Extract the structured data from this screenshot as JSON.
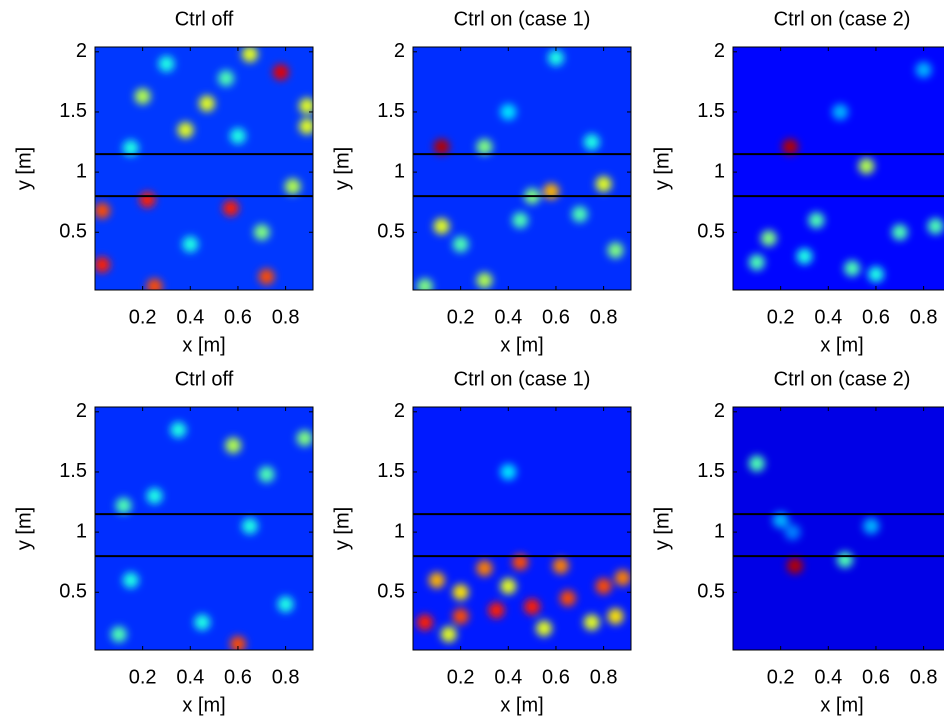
{
  "chart_data": [
    {
      "type": "heatmap",
      "title": "Ctrl off",
      "x_label": "x [m]",
      "y_label": "y [m]",
      "colormap": "jet",
      "xlim": [
        0,
        0.915
      ],
      "ylim": [
        0.02,
        2.04
      ],
      "xticks": [
        0.2,
        0.4,
        0.6,
        0.8
      ],
      "yticks": [
        0.5,
        1,
        1.5,
        2
      ],
      "hlines": [
        1.15,
        0.8
      ],
      "background": 0.18,
      "peaks": [
        {
          "x": 0.2,
          "y": 1.63,
          "intensity": 0.55
        },
        {
          "x": 0.22,
          "y": 0.77,
          "intensity": 0.85
        },
        {
          "x": 0.38,
          "y": 1.35,
          "intensity": 0.6
        },
        {
          "x": 0.47,
          "y": 1.57,
          "intensity": 0.6
        },
        {
          "x": 0.65,
          "y": 1.98,
          "intensity": 0.6
        },
        {
          "x": 0.78,
          "y": 1.83,
          "intensity": 0.9
        },
        {
          "x": 0.89,
          "y": 1.55,
          "intensity": 0.6
        },
        {
          "x": 0.89,
          "y": 1.38,
          "intensity": 0.6
        },
        {
          "x": 0.03,
          "y": 0.68,
          "intensity": 0.8
        },
        {
          "x": 0.03,
          "y": 0.23,
          "intensity": 0.85
        },
        {
          "x": 0.57,
          "y": 0.7,
          "intensity": 0.85
        },
        {
          "x": 0.72,
          "y": 0.13,
          "intensity": 0.8
        },
        {
          "x": 0.25,
          "y": 0.05,
          "intensity": 0.8
        },
        {
          "x": 0.55,
          "y": 1.78,
          "intensity": 0.45
        },
        {
          "x": 0.83,
          "y": 0.88,
          "intensity": 0.55
        },
        {
          "x": 0.15,
          "y": 1.2,
          "intensity": 0.4
        },
        {
          "x": 0.4,
          "y": 0.4,
          "intensity": 0.4
        },
        {
          "x": 0.7,
          "y": 0.5,
          "intensity": 0.5
        },
        {
          "x": 0.3,
          "y": 1.9,
          "intensity": 0.4
        },
        {
          "x": 0.6,
          "y": 1.3,
          "intensity": 0.4
        }
      ]
    },
    {
      "type": "heatmap",
      "title": "Ctrl on (case 1)",
      "x_label": "x [m]",
      "y_label": "y [m]",
      "colormap": "jet",
      "xlim": [
        0,
        0.915
      ],
      "ylim": [
        0.02,
        2.04
      ],
      "xticks": [
        0.2,
        0.4,
        0.6,
        0.8
      ],
      "yticks": [
        0.5,
        1,
        1.5,
        2
      ],
      "hlines": [
        1.15,
        0.8
      ],
      "background": 0.17,
      "peaks": [
        {
          "x": 0.12,
          "y": 1.21,
          "intensity": 0.95
        },
        {
          "x": 0.3,
          "y": 1.21,
          "intensity": 0.5
        },
        {
          "x": 0.58,
          "y": 0.84,
          "intensity": 0.7
        },
        {
          "x": 0.8,
          "y": 0.9,
          "intensity": 0.6
        },
        {
          "x": 0.12,
          "y": 0.55,
          "intensity": 0.6
        },
        {
          "x": 0.3,
          "y": 0.1,
          "intensity": 0.55
        },
        {
          "x": 0.5,
          "y": 0.8,
          "intensity": 0.5
        },
        {
          "x": 0.6,
          "y": 1.95,
          "intensity": 0.4
        },
        {
          "x": 0.85,
          "y": 0.35,
          "intensity": 0.5
        },
        {
          "x": 0.2,
          "y": 0.4,
          "intensity": 0.45
        },
        {
          "x": 0.45,
          "y": 0.6,
          "intensity": 0.45
        },
        {
          "x": 0.7,
          "y": 0.65,
          "intensity": 0.45
        },
        {
          "x": 0.4,
          "y": 1.5,
          "intensity": 0.35
        },
        {
          "x": 0.75,
          "y": 1.25,
          "intensity": 0.4
        },
        {
          "x": 0.05,
          "y": 0.05,
          "intensity": 0.5
        }
      ]
    },
    {
      "type": "heatmap",
      "title": "Ctrl on (case 2)",
      "x_label": "x [m]",
      "y_label": "y [m]",
      "colormap": "jet",
      "xlim": [
        0,
        0.915
      ],
      "ylim": [
        0.02,
        2.04
      ],
      "xticks": [
        0.2,
        0.4,
        0.6,
        0.8
      ],
      "yticks": [
        0.5,
        1,
        1.5,
        2
      ],
      "hlines": [
        1.15,
        0.8
      ],
      "background": 0.13,
      "peaks": [
        {
          "x": 0.24,
          "y": 1.21,
          "intensity": 0.95
        },
        {
          "x": 0.56,
          "y": 1.05,
          "intensity": 0.55
        },
        {
          "x": 0.15,
          "y": 0.45,
          "intensity": 0.5
        },
        {
          "x": 0.35,
          "y": 0.6,
          "intensity": 0.45
        },
        {
          "x": 0.5,
          "y": 0.2,
          "intensity": 0.45
        },
        {
          "x": 0.7,
          "y": 0.5,
          "intensity": 0.45
        },
        {
          "x": 0.85,
          "y": 0.55,
          "intensity": 0.45
        },
        {
          "x": 0.1,
          "y": 0.25,
          "intensity": 0.45
        },
        {
          "x": 0.3,
          "y": 0.3,
          "intensity": 0.4
        },
        {
          "x": 0.6,
          "y": 0.15,
          "intensity": 0.4
        },
        {
          "x": 0.45,
          "y": 1.5,
          "intensity": 0.3
        },
        {
          "x": 0.8,
          "y": 1.85,
          "intensity": 0.3
        }
      ]
    },
    {
      "type": "heatmap",
      "title": "Ctrl off",
      "x_label": "x [m]",
      "y_label": "y [m]",
      "colormap": "jet",
      "xlim": [
        0,
        0.915
      ],
      "ylim": [
        0.02,
        2.04
      ],
      "xticks": [
        0.2,
        0.4,
        0.6,
        0.8
      ],
      "yticks": [
        0.5,
        1,
        1.5,
        2
      ],
      "hlines": [
        1.15,
        0.8
      ],
      "background": 0.17,
      "peaks": [
        {
          "x": 0.6,
          "y": 0.07,
          "intensity": 0.8
        },
        {
          "x": 0.58,
          "y": 1.72,
          "intensity": 0.55
        },
        {
          "x": 0.72,
          "y": 1.48,
          "intensity": 0.45
        },
        {
          "x": 0.12,
          "y": 1.22,
          "intensity": 0.45
        },
        {
          "x": 0.25,
          "y": 1.3,
          "intensity": 0.4
        },
        {
          "x": 0.45,
          "y": 0.25,
          "intensity": 0.4
        },
        {
          "x": 0.8,
          "y": 0.4,
          "intensity": 0.4
        },
        {
          "x": 0.15,
          "y": 0.6,
          "intensity": 0.4
        },
        {
          "x": 0.65,
          "y": 1.05,
          "intensity": 0.4
        },
        {
          "x": 0.35,
          "y": 1.85,
          "intensity": 0.4
        },
        {
          "x": 0.88,
          "y": 1.78,
          "intensity": 0.5
        },
        {
          "x": 0.1,
          "y": 0.15,
          "intensity": 0.45
        }
      ]
    },
    {
      "type": "heatmap",
      "title": "Ctrl on (case 1)",
      "x_label": "x [m]",
      "y_label": "y [m]",
      "colormap": "jet",
      "xlim": [
        0,
        0.915
      ],
      "ylim": [
        0.02,
        2.04
      ],
      "xticks": [
        0.2,
        0.4,
        0.6,
        0.8
      ],
      "yticks": [
        0.5,
        1,
        1.5,
        2
      ],
      "hlines": [
        1.15,
        0.8
      ],
      "background": 0.15,
      "peaks": [
        {
          "x": 0.05,
          "y": 0.25,
          "intensity": 0.85
        },
        {
          "x": 0.2,
          "y": 0.3,
          "intensity": 0.8
        },
        {
          "x": 0.35,
          "y": 0.35,
          "intensity": 0.85
        },
        {
          "x": 0.5,
          "y": 0.38,
          "intensity": 0.85
        },
        {
          "x": 0.65,
          "y": 0.45,
          "intensity": 0.8
        },
        {
          "x": 0.8,
          "y": 0.55,
          "intensity": 0.8
        },
        {
          "x": 0.88,
          "y": 0.62,
          "intensity": 0.75
        },
        {
          "x": 0.1,
          "y": 0.6,
          "intensity": 0.7
        },
        {
          "x": 0.3,
          "y": 0.7,
          "intensity": 0.75
        },
        {
          "x": 0.45,
          "y": 0.75,
          "intensity": 0.8
        },
        {
          "x": 0.62,
          "y": 0.72,
          "intensity": 0.75
        },
        {
          "x": 0.2,
          "y": 0.5,
          "intensity": 0.65
        },
        {
          "x": 0.55,
          "y": 0.2,
          "intensity": 0.6
        },
        {
          "x": 0.75,
          "y": 0.25,
          "intensity": 0.6
        },
        {
          "x": 0.4,
          "y": 0.55,
          "intensity": 0.6
        },
        {
          "x": 0.85,
          "y": 0.3,
          "intensity": 0.65
        },
        {
          "x": 0.15,
          "y": 0.15,
          "intensity": 0.6
        },
        {
          "x": 0.4,
          "y": 1.5,
          "intensity": 0.35
        }
      ]
    },
    {
      "type": "heatmap",
      "title": "Ctrl on (case 2)",
      "x_label": "x [m]",
      "y_label": "y [m]",
      "colormap": "jet",
      "xlim": [
        0,
        0.915
      ],
      "ylim": [
        0.02,
        2.04
      ],
      "xticks": [
        0.2,
        0.4,
        0.6,
        0.8
      ],
      "yticks": [
        0.5,
        1,
        1.5,
        2
      ],
      "hlines": [
        1.15,
        0.8
      ],
      "background": 0.1,
      "peaks": [
        {
          "x": 0.26,
          "y": 0.72,
          "intensity": 0.95
        },
        {
          "x": 0.1,
          "y": 1.57,
          "intensity": 0.45
        },
        {
          "x": 0.47,
          "y": 0.77,
          "intensity": 0.45
        },
        {
          "x": 0.58,
          "y": 1.05,
          "intensity": 0.3
        },
        {
          "x": 0.2,
          "y": 1.1,
          "intensity": 0.3
        },
        {
          "x": 0.25,
          "y": 1.0,
          "intensity": 0.25
        }
      ]
    }
  ]
}
